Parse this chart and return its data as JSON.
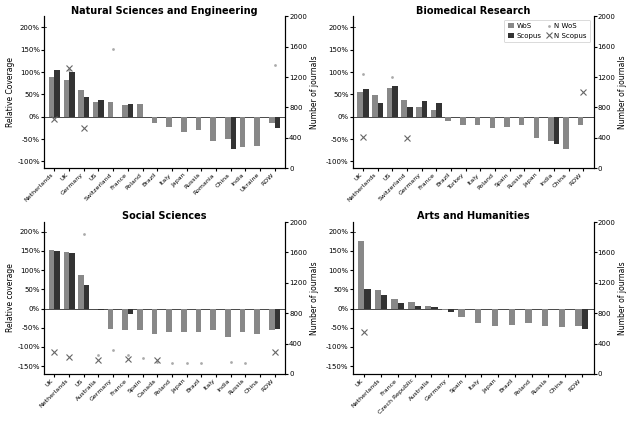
{
  "panels": [
    {
      "title": "Natural Sciences and Engineering",
      "ylabel_left": "Relative Coverage",
      "ylabel_right": "Number of journals",
      "ylim_left": [
        -1.15,
        2.25
      ],
      "ylim_right": [
        0,
        2000
      ],
      "yticks_left": [
        -1.0,
        -0.5,
        0.0,
        0.5,
        1.0,
        1.5,
        2.0
      ],
      "ytick_labels_left": [
        "-100%",
        "-50%",
        "0%",
        "50%",
        "100%",
        "150%",
        "200%"
      ],
      "countries": [
        "Netherlands",
        "UK",
        "Germany",
        "US",
        "Switzerland",
        "France",
        "Poland",
        "Brazil",
        "Italy",
        "Japan",
        "Russia",
        "Romania",
        "China",
        "India",
        "Ukraine",
        "ROW"
      ],
      "wos": [
        0.88,
        0.82,
        0.6,
        0.32,
        0.33,
        0.27,
        0.28,
        -0.13,
        -0.22,
        -0.35,
        -0.3,
        -0.55,
        -0.5,
        -0.68,
        -0.65,
        -0.15
      ],
      "scopus": [
        1.05,
        1.0,
        0.45,
        0.38,
        null,
        0.28,
        null,
        null,
        null,
        null,
        null,
        null,
        -0.72,
        null,
        null,
        -0.25
      ],
      "nwos": [
        null,
        1.05,
        null,
        null,
        1.52,
        null,
        null,
        null,
        null,
        null,
        null,
        null,
        null,
        null,
        null,
        1.15
      ],
      "nscopus": [
        -0.05,
        1.1,
        -0.25,
        null,
        null,
        null,
        null,
        null,
        null,
        null,
        null,
        null,
        null,
        null,
        null,
        null
      ],
      "dot_nwos": [
        null,
        null,
        null,
        null,
        1.0,
        null,
        null,
        null,
        null,
        null,
        null,
        null,
        null,
        null,
        null,
        null
      ],
      "x_nscopus": [
        -0.05,
        null,
        -0.25,
        null,
        null,
        null,
        null,
        null,
        null,
        null,
        null,
        null,
        null,
        null,
        null,
        null
      ]
    },
    {
      "title": "Biomedical Research",
      "ylabel_left": "",
      "ylabel_right": "Number of journals",
      "ylim_left": [
        -1.15,
        2.25
      ],
      "ylim_right": [
        0,
        2000
      ],
      "yticks_left": [
        -1.0,
        -0.5,
        0.0,
        0.5,
        1.0,
        1.5,
        2.0
      ],
      "ytick_labels_left": [
        "-100%",
        "-50%",
        "0%",
        "50%",
        "100%",
        "150%",
        "200%"
      ],
      "countries": [
        "UK",
        "Netherlands",
        "US",
        "Switzerland",
        "Germany",
        "France",
        "Brazil",
        "Turkey",
        "Italy",
        "Poland",
        "Spain",
        "Russia",
        "Japan",
        "India",
        "China",
        "ROW"
      ],
      "wos": [
        0.55,
        0.48,
        0.65,
        0.38,
        0.22,
        0.15,
        -0.1,
        -0.18,
        -0.18,
        -0.25,
        -0.22,
        -0.18,
        -0.48,
        -0.55,
        -0.72,
        -0.18
      ],
      "scopus": [
        0.62,
        0.3,
        0.7,
        0.22,
        0.35,
        0.3,
        null,
        null,
        null,
        null,
        null,
        null,
        null,
        -0.62,
        null,
        null
      ],
      "nwos": [
        0.95,
        null,
        0.88,
        null,
        null,
        null,
        null,
        null,
        null,
        null,
        null,
        null,
        null,
        null,
        null,
        null
      ],
      "nscopus": [
        -0.45,
        null,
        null,
        -0.48,
        null,
        null,
        null,
        null,
        null,
        null,
        null,
        null,
        null,
        null,
        null,
        0.55
      ],
      "dot_nwos": [
        null,
        null,
        null,
        null,
        null,
        null,
        null,
        null,
        null,
        null,
        null,
        null,
        null,
        null,
        null,
        null
      ],
      "x_nscopus": [
        -0.45,
        null,
        null,
        -0.48,
        null,
        null,
        null,
        null,
        null,
        null,
        null,
        null,
        null,
        null,
        null,
        0.55
      ]
    },
    {
      "title": "Social Sciences",
      "ylabel_left": "Relative coverage",
      "ylabel_right": "Number of journals",
      "ylim_left": [
        -1.7,
        2.25
      ],
      "ylim_right": [
        0,
        2000
      ],
      "yticks_left": [
        -1.5,
        -1.0,
        -0.5,
        0.0,
        0.5,
        1.0,
        1.5,
        2.0
      ],
      "ytick_labels_left": [
        "-150%",
        "-100%",
        "-50%",
        "0%",
        "50%",
        "100%",
        "150%",
        "200%"
      ],
      "countries": [
        "UK",
        "Netherlands",
        "US",
        "Australia",
        "Germany",
        "France",
        "Spain",
        "Canada",
        "Poland",
        "Japan",
        "Brazil",
        "Italy",
        "India",
        "Russia",
        "China",
        "ROW"
      ],
      "wos": [
        1.52,
        1.48,
        0.88,
        -0.02,
        -0.52,
        -0.55,
        -0.55,
        -0.65,
        -0.62,
        -0.62,
        -0.62,
        -0.55,
        -0.75,
        -0.62,
        -0.65,
        -0.55
      ],
      "scopus": [
        1.5,
        1.45,
        0.62,
        -0.05,
        null,
        -0.15,
        null,
        null,
        null,
        null,
        null,
        null,
        null,
        null,
        null,
        -0.52
      ],
      "nwos": [
        null,
        null,
        1.95,
        -1.22,
        -1.08,
        -1.22,
        -1.28,
        -1.38,
        -1.42,
        -1.42,
        -1.42,
        null,
        -1.38,
        -1.42,
        null,
        null
      ],
      "nscopus": [
        -1.12,
        -1.25,
        null,
        -1.35,
        null,
        -1.32,
        null,
        -1.35,
        null,
        null,
        null,
        null,
        null,
        null,
        null,
        -1.12
      ],
      "dot_nwos": [
        null,
        null,
        1.95,
        null,
        null,
        null,
        null,
        null,
        null,
        null,
        null,
        null,
        null,
        null,
        null,
        null
      ],
      "x_nscopus": [
        -1.12,
        -1.25,
        null,
        -1.35,
        null,
        -1.32,
        null,
        -1.35,
        null,
        null,
        null,
        null,
        null,
        null,
        null,
        -1.12
      ]
    },
    {
      "title": "Arts and Humanities",
      "ylabel_left": "",
      "ylabel_right": "Number of journals",
      "ylim_left": [
        -1.7,
        2.25
      ],
      "ylim_right": [
        0,
        2000
      ],
      "yticks_left": [
        -1.5,
        -1.0,
        -0.5,
        0.0,
        0.5,
        1.0,
        1.5,
        2.0
      ],
      "ytick_labels_left": [
        "-150%",
        "-100%",
        "-50%",
        "0%",
        "50%",
        "100%",
        "150%",
        "200%"
      ],
      "countries": [
        "UK",
        "Netherlands",
        "France",
        "Czech Republic",
        "Australia",
        "Germany",
        "Spain",
        "Italy",
        "Japan",
        "Brazil",
        "Poland",
        "Russia",
        "China",
        "ROW"
      ],
      "wos": [
        1.75,
        0.48,
        0.25,
        0.18,
        0.08,
        -0.05,
        -0.22,
        -0.38,
        -0.45,
        -0.42,
        -0.38,
        -0.45,
        -0.48,
        -0.45
      ],
      "scopus": [
        0.52,
        0.35,
        0.15,
        0.08,
        0.05,
        -0.08,
        null,
        null,
        null,
        null,
        null,
        null,
        null,
        -0.52
      ],
      "nwos": [
        null,
        null,
        null,
        null,
        null,
        null,
        null,
        null,
        null,
        null,
        null,
        null,
        null,
        null
      ],
      "nscopus": [
        -0.62,
        null,
        null,
        null,
        null,
        null,
        null,
        null,
        null,
        null,
        null,
        null,
        null,
        null
      ],
      "dot_nwos": [
        null,
        null,
        null,
        null,
        null,
        null,
        null,
        null,
        null,
        null,
        null,
        null,
        null,
        null
      ],
      "x_nscopus": [
        -0.62,
        null,
        null,
        null,
        null,
        null,
        null,
        null,
        null,
        null,
        null,
        null,
        null,
        null
      ]
    }
  ],
  "figsize": [
    6.33,
    4.21
  ],
  "dpi": 100
}
